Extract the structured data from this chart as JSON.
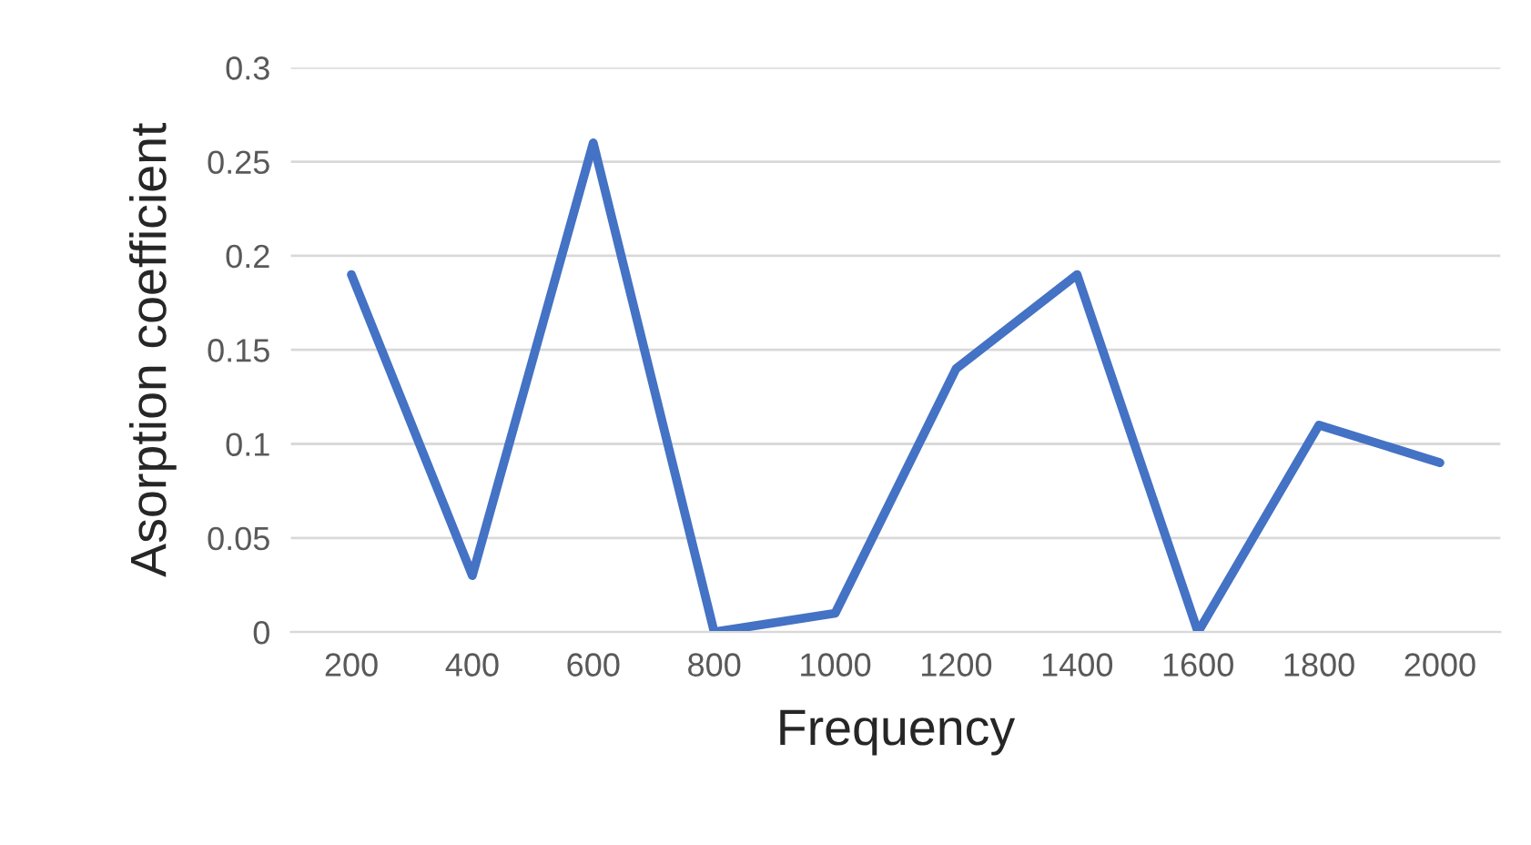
{
  "chart_data": {
    "type": "line",
    "xlabel": "Frequency",
    "ylabel": "Asorption coefficient",
    "categories": [
      "200",
      "400",
      "600",
      "800",
      "1000",
      "1200",
      "1400",
      "1600",
      "1800",
      "2000"
    ],
    "series": [
      {
        "color": "#4472c4",
        "values": [
          0.19,
          0.03,
          0.26,
          0,
          0.01,
          0.14,
          0.19,
          0,
          0.11,
          0.09
        ]
      }
    ],
    "ylim": [
      0,
      0.3
    ],
    "yticks": [
      0,
      0.05,
      0.1,
      0.15,
      0.2,
      0.25,
      0.3
    ],
    "grid": "y",
    "legend": false,
    "marker": "none",
    "line_style": "solid"
  }
}
